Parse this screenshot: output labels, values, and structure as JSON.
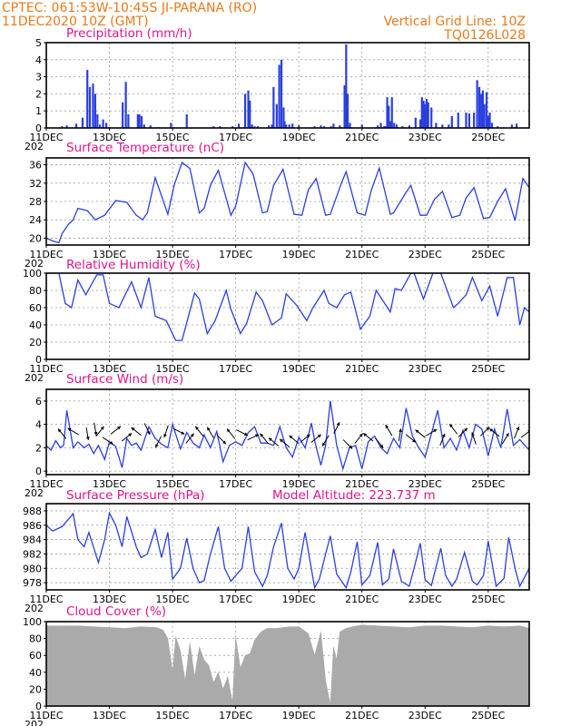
{
  "header": {
    "left_line1": "CPTEC:   061:53W-10:45S   JI-PARANA (RO)",
    "left_line2": "11DEC2020 10Z (GMT)",
    "right_line1": "Vertical Grid Line: 10Z",
    "right_line2": "TQ0126L028"
  },
  "colors": {
    "header": "#e87a1c",
    "titles": "#e0158a",
    "series": "#2a3fe0",
    "cloud": "#aaaaaa",
    "arrows": "#000000"
  },
  "x_axis": {
    "start_day": 11,
    "end_day": 26.3,
    "ticks": [
      11,
      13,
      15,
      17,
      19,
      21,
      23,
      25
    ],
    "labels": [
      "11DEC",
      "13DEC",
      "15DEC",
      "17DEC",
      "19DEC",
      "21DEC",
      "23DEC",
      "25DEC"
    ],
    "clipped_year_label": "202"
  },
  "chart_data": [
    {
      "id": "precip",
      "type": "bar",
      "title": "Precipitation (mm/h)",
      "ylim": [
        0,
        5
      ],
      "yticks": [
        0,
        1,
        2,
        3,
        4,
        5
      ],
      "x": [
        11.5,
        11.65,
        11.95,
        12.15,
        12.3,
        12.38,
        12.48,
        12.55,
        12.62,
        12.7,
        12.8,
        12.9,
        13.0,
        13.42,
        13.52,
        13.6,
        13.9,
        13.95,
        14.02,
        14.1,
        14.3,
        14.55,
        14.95,
        15.45,
        16.3,
        16.5,
        16.9,
        17.1,
        17.3,
        17.4,
        17.45,
        17.52,
        17.6,
        17.7,
        18.05,
        18.15,
        18.2,
        18.3,
        18.38,
        18.45,
        18.52,
        18.55,
        18.6,
        18.7,
        18.8,
        19.0,
        19.5,
        19.7,
        19.8,
        20.02,
        20.1,
        20.3,
        20.45,
        20.5,
        20.55,
        20.62,
        21.0,
        21.5,
        21.6,
        21.7,
        21.75,
        21.8,
        21.85,
        21.9,
        21.95,
        22.02,
        22.1,
        22.28,
        22.5,
        22.7,
        22.85,
        22.9,
        22.95,
        23.0,
        23.05,
        23.1,
        23.2,
        23.35,
        23.55,
        23.75,
        23.85,
        24.05,
        24.3,
        24.4,
        24.55,
        24.65,
        24.72,
        24.78,
        24.83,
        24.88,
        24.95,
        25.0,
        25.05,
        25.12,
        25.3,
        25.75,
        25.83,
        25.9
      ],
      "values": [
        0.1,
        0.15,
        0.25,
        0.6,
        3.4,
        2.4,
        2.6,
        2.0,
        0.8,
        0.2,
        0.5,
        0.3,
        0.05,
        1.5,
        2.7,
        0.8,
        0.8,
        0.8,
        0.7,
        0.2,
        0.15,
        0.05,
        0.3,
        0.8,
        0.1,
        0.1,
        0.1,
        0.25,
        2.0,
        2.2,
        1.6,
        0.2,
        0.1,
        0.1,
        0.15,
        0.2,
        2.4,
        1.4,
        3.7,
        4.0,
        1.2,
        0.4,
        0.2,
        0.2,
        0.25,
        0.15,
        0.1,
        0.15,
        0.1,
        0.1,
        0.25,
        0.15,
        2.5,
        4.9,
        2.0,
        0.3,
        0.2,
        0.15,
        0.3,
        0.1,
        0.1,
        1.8,
        1.3,
        0.4,
        1.8,
        0.3,
        0.2,
        0.1,
        0.15,
        0.6,
        0.5,
        1.8,
        1.6,
        1.4,
        1.7,
        1.5,
        1.2,
        0.3,
        0.2,
        0.2,
        0.7,
        0.9,
        0.9,
        0.85,
        0.9,
        2.8,
        2.4,
        2.0,
        2.2,
        1.4,
        2.1,
        0.7,
        0.9,
        0.3,
        0.1,
        0.2,
        0.05,
        0.25
      ]
    },
    {
      "id": "temp",
      "type": "line",
      "title": "Surface Temperature (nC)",
      "ylim": [
        18.5,
        37.5
      ],
      "yticks": [
        20,
        24,
        28,
        32,
        36
      ],
      "x": [
        11.0,
        11.2,
        11.4,
        11.5,
        11.7,
        11.85,
        12.0,
        12.3,
        12.55,
        12.85,
        13.2,
        13.55,
        13.85,
        14.05,
        14.2,
        14.45,
        14.85,
        15.05,
        15.3,
        15.55,
        15.85,
        16.0,
        16.2,
        16.45,
        16.85,
        17.0,
        17.3,
        17.55,
        17.85,
        18.0,
        18.2,
        18.5,
        18.85,
        19.1,
        19.3,
        19.55,
        19.85,
        20.0,
        20.35,
        20.5,
        20.85,
        21.1,
        21.3,
        21.55,
        21.9,
        22.0,
        22.4,
        22.55,
        22.85,
        23.05,
        23.3,
        23.55,
        23.85,
        24.1,
        24.3,
        24.55,
        24.85,
        25.05,
        25.3,
        25.55,
        25.85,
        26.1,
        26.3
      ],
      "values": [
        20,
        19.4,
        19,
        21,
        23,
        24,
        26.5,
        26,
        24,
        25,
        28.2,
        27.8,
        25,
        24,
        25.5,
        33.2,
        25.2,
        31.5,
        36.5,
        35.2,
        25.5,
        26.5,
        31.5,
        34.8,
        25,
        27,
        36.5,
        34,
        25.5,
        25.8,
        31.5,
        35,
        25.2,
        25,
        30.5,
        33,
        25,
        25.2,
        32,
        34.5,
        25.5,
        25,
        30.5,
        35.3,
        25.2,
        25.5,
        30,
        31.5,
        25,
        25,
        28.5,
        30.2,
        24.5,
        25,
        28.8,
        31,
        24.3,
        24.5,
        28,
        30.8,
        23.8,
        33,
        31
      ]
    },
    {
      "id": "rh",
      "type": "line",
      "title": "Relative Humidity (%)",
      "ylim": [
        0,
        100
      ],
      "yticks": [
        0,
        20,
        40,
        60,
        80,
        100
      ],
      "x": [
        11.0,
        11.4,
        11.6,
        11.8,
        12.0,
        12.25,
        12.6,
        12.8,
        13.0,
        13.3,
        13.5,
        13.7,
        14.0,
        14.25,
        14.45,
        14.8,
        15.1,
        15.3,
        15.7,
        15.85,
        16.1,
        16.35,
        16.7,
        16.85,
        17.15,
        17.35,
        17.65,
        17.85,
        18.15,
        18.45,
        18.6,
        18.95,
        19.25,
        19.45,
        19.8,
        19.95,
        20.2,
        20.45,
        20.65,
        20.95,
        21.25,
        21.45,
        21.9,
        22.05,
        22.25,
        22.55,
        22.65,
        22.95,
        23.25,
        23.5,
        23.9,
        24.05,
        24.3,
        24.5,
        24.8,
        25.05,
        25.3,
        25.6,
        25.8,
        26.0,
        26.15,
        26.3
      ],
      "values": [
        100,
        100,
        65,
        60,
        92,
        75,
        98,
        98,
        65,
        60,
        75,
        90,
        60,
        95,
        50,
        45,
        22,
        22,
        77,
        70,
        30,
        45,
        80,
        58,
        30,
        42,
        78,
        68,
        40,
        48,
        76,
        62,
        45,
        60,
        80,
        65,
        60,
        75,
        78,
        35,
        50,
        80,
        55,
        82,
        80,
        100,
        100,
        70,
        100,
        100,
        60,
        65,
        75,
        95,
        68,
        85,
        50,
        95,
        95,
        40,
        60,
        55
      ]
    },
    {
      "id": "wind",
      "type": "line",
      "title": "Surface Wind (m/s)",
      "ylim": [
        -0.3,
        7
      ],
      "yticks": [
        0,
        2,
        4,
        6
      ],
      "x": [
        11.0,
        11.15,
        11.3,
        11.45,
        11.55,
        11.65,
        11.85,
        12.0,
        12.2,
        12.35,
        12.5,
        12.65,
        12.85,
        13.0,
        13.2,
        13.4,
        13.55,
        13.7,
        13.85,
        14.0,
        14.25,
        14.45,
        14.65,
        14.85,
        15.0,
        15.25,
        15.45,
        15.65,
        15.85,
        16.0,
        16.2,
        16.4,
        16.6,
        16.8,
        17.0,
        17.2,
        17.4,
        17.6,
        17.8,
        18.0,
        18.2,
        18.4,
        18.6,
        18.8,
        19.0,
        19.2,
        19.4,
        19.5,
        19.7,
        19.85,
        20.0,
        20.2,
        20.4,
        20.6,
        20.8,
        21.0,
        21.2,
        21.4,
        21.6,
        21.8,
        22.0,
        22.2,
        22.4,
        22.6,
        22.8,
        23.0,
        23.2,
        23.4,
        23.6,
        23.8,
        24.0,
        24.2,
        24.4,
        24.6,
        24.8,
        25.0,
        25.2,
        25.4,
        25.6,
        25.8,
        26.0,
        26.3
      ],
      "values": [
        2.2,
        1.8,
        2.6,
        2.0,
        2.2,
        5.2,
        2.0,
        2.5,
        2.0,
        2.3,
        1.5,
        2.2,
        1.0,
        2.5,
        2.1,
        0.3,
        2.8,
        2.2,
        2.4,
        1.8,
        3.8,
        2.8,
        2.3,
        2.0,
        4.0,
        1.9,
        3.3,
        2.4,
        2.0,
        3.1,
        2.0,
        3.4,
        0.8,
        2.2,
        2.5,
        2.2,
        3.3,
        3.8,
        2.4,
        2.4,
        2.2,
        3.8,
        2.0,
        1.2,
        2.9,
        2.0,
        4.1,
        2.6,
        0.5,
        2.2,
        6.0,
        2.2,
        0.2,
        2.0,
        2.2,
        0.2,
        2.5,
        3.0,
        2.0,
        1.5,
        2.8,
        2.0,
        5.4,
        3.0,
        2.0,
        1.2,
        3.2,
        5.2,
        2.0,
        2.8,
        1.8,
        3.5,
        2.0,
        4.0,
        3.6,
        1.3,
        3.6,
        2.0,
        5.3,
        2.2,
        2.7,
        1.8
      ]
    },
    {
      "id": "pressure",
      "type": "line",
      "title": "Surface Pressure (hPa)",
      "annotation": "Model Altitude: 223.737 m",
      "ylim": [
        977,
        989
      ],
      "yticks": [
        978,
        980,
        982,
        984,
        986,
        988
      ],
      "x": [
        11.0,
        11.2,
        11.5,
        11.85,
        12.0,
        12.2,
        12.35,
        12.65,
        12.85,
        13.0,
        13.2,
        13.4,
        13.55,
        13.85,
        14.0,
        14.2,
        14.45,
        14.65,
        14.85,
        15.0,
        15.25,
        15.45,
        15.65,
        15.85,
        16.0,
        16.2,
        16.45,
        16.65,
        16.85,
        17.0,
        17.2,
        17.4,
        17.6,
        17.85,
        18.0,
        18.2,
        18.45,
        18.65,
        18.85,
        19.0,
        19.2,
        19.5,
        19.65,
        19.85,
        20.0,
        20.2,
        20.5,
        20.65,
        20.85,
        21.0,
        21.25,
        21.5,
        21.65,
        21.85,
        22.0,
        22.25,
        22.5,
        22.65,
        22.85,
        23.0,
        23.2,
        23.5,
        23.65,
        23.85,
        24.0,
        24.25,
        24.5,
        24.65,
        24.85,
        25.0,
        25.25,
        25.5,
        25.65,
        25.85,
        26.0,
        26.3
      ],
      "values": [
        986,
        985.2,
        985.8,
        987.6,
        984,
        983,
        985,
        980.8,
        984,
        987.7,
        986,
        983,
        987.2,
        983,
        981.5,
        982,
        985.4,
        981.5,
        985,
        978.5,
        980,
        984.2,
        980,
        978,
        978.3,
        982,
        985.8,
        980,
        978.2,
        979,
        980,
        985.8,
        979.5,
        977.5,
        979,
        983,
        986.3,
        980,
        978.5,
        980,
        985,
        977.3,
        978.5,
        982,
        984.5,
        979.2,
        977.3,
        979.5,
        983.7,
        977.7,
        979,
        983.6,
        977.7,
        978.5,
        982.7,
        978.2,
        977.5,
        980,
        983.5,
        978.4,
        977.6,
        982.8,
        979,
        977.5,
        978.5,
        982.2,
        978.2,
        977.7,
        979,
        983.8,
        977.5,
        978.6,
        984.3,
        980,
        977.5,
        980
      ]
    },
    {
      "id": "cloud",
      "type": "area",
      "title": "Cloud Cover (%)",
      "ylim": [
        0,
        100
      ],
      "yticks": [
        0,
        20,
        40,
        60,
        80,
        100
      ],
      "x": [
        11.0,
        12.0,
        13.0,
        13.5,
        14.0,
        14.5,
        14.7,
        14.85,
        15.0,
        15.1,
        15.25,
        15.4,
        15.55,
        15.7,
        15.85,
        16.0,
        16.15,
        16.3,
        16.45,
        16.6,
        16.75,
        16.9,
        17.0,
        17.15,
        17.3,
        17.45,
        17.6,
        17.8,
        18.0,
        18.3,
        18.7,
        19.0,
        19.3,
        19.5,
        19.7,
        19.85,
        20.0,
        20.1,
        20.2,
        20.3,
        20.5,
        20.7,
        21.0,
        21.5,
        22.0,
        22.5,
        23.0,
        23.5,
        24.0,
        24.5,
        25.0,
        25.5,
        26.0,
        26.3
      ],
      "values": [
        95,
        95,
        93,
        92,
        94,
        93,
        90,
        80,
        40,
        82,
        65,
        30,
        75,
        35,
        70,
        55,
        48,
        28,
        40,
        20,
        35,
        4,
        82,
        45,
        60,
        62,
        78,
        88,
        92,
        92,
        94,
        94,
        86,
        60,
        88,
        30,
        2,
        70,
        55,
        88,
        92,
        94,
        96,
        95,
        94,
        93,
        95,
        95,
        94,
        93,
        95,
        94,
        95,
        92
      ]
    }
  ],
  "wind_vectors": {
    "x": [
      11.5,
      11.85,
      12.3,
      12.55,
      12.7,
      12.95,
      13.2,
      13.55,
      13.85,
      14.2,
      14.55,
      14.8,
      15.2,
      15.55,
      15.85,
      16.2,
      16.55,
      16.85,
      17.2,
      17.55,
      17.9,
      18.2,
      18.55,
      18.85,
      19.2,
      19.55,
      19.85,
      20.2,
      20.55,
      20.9,
      21.2,
      21.55,
      21.85,
      22.2,
      22.55,
      22.85,
      23.2,
      23.55,
      23.9,
      24.2,
      24.55,
      24.9,
      25.2,
      25.55,
      25.9,
      26.2
    ],
    "y": [
      3.2,
      3.4,
      3.2,
      3.6,
      3.4,
      2.6,
      3.5,
      2.9,
      3.4,
      3.6,
      2.5,
      3.4,
      3.4,
      2.8,
      3.4,
      3.3,
      2.7,
      3.2,
      3.3,
      2.9,
      2.8,
      2.5,
      2.4,
      2.7,
      2.8,
      2.8,
      2.6,
      3.7,
      2.3,
      2.8,
      2.9,
      2.4,
      3.5,
      3.1,
      2.8,
      3.2,
      3.3,
      2.7,
      3.6,
      3.3,
      2.8,
      3.4,
      3.3,
      2.8,
      3.3,
      3.2
    ],
    "u": [
      -0.4,
      -0.5,
      0.1,
      0.1,
      0.4,
      0.6,
      0.5,
      0.5,
      -0.5,
      0.3,
      -0.3,
      -0.2,
      0.6,
      0.4,
      -0.4,
      -0.3,
      0.5,
      -0.4,
      0.6,
      0.6,
      -0.4,
      -0.6,
      -0.6,
      -0.6,
      0.5,
      0.5,
      -0.3,
      0.3,
      0.5,
      0.4,
      -0.5,
      0.4,
      -0.3,
      0.1,
      0.5,
      -0.5,
      0.5,
      0.2,
      -0.3,
      0.4,
      -0.2,
      0.4,
      -0.5,
      0.3,
      0.2,
      0.4
    ],
    "v": [
      0.5,
      0.3,
      -0.6,
      -0.6,
      0.5,
      -0.4,
      0.4,
      0.4,
      0.4,
      -0.6,
      -0.6,
      -0.6,
      -0.3,
      0.5,
      0.5,
      0.5,
      -0.5,
      0.5,
      -0.3,
      0.3,
      0.5,
      0.5,
      0.5,
      0.5,
      0.4,
      0.4,
      -0.5,
      0.6,
      -0.5,
      0.5,
      0.4,
      -0.5,
      0.5,
      0.6,
      -0.4,
      0.4,
      0.3,
      0.5,
      0.4,
      0.4,
      0.6,
      0.4,
      0.4,
      0.5,
      0.5,
      0.3
    ]
  }
}
